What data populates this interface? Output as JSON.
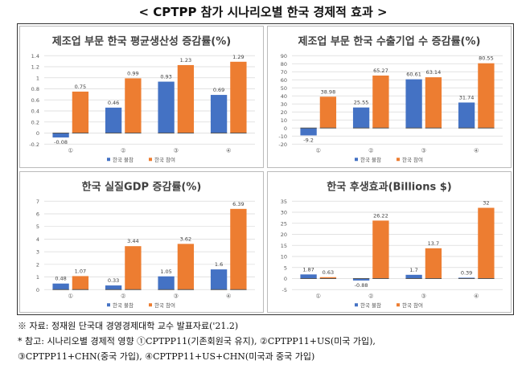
{
  "page_title": "< CPTPP 참가 시나리오별 한국 경제적 효과 >",
  "colors": {
    "not_joining": "#4472C4",
    "joining": "#ED7D31"
  },
  "chart_data": [
    {
      "type": "bar",
      "title": "제조업 부문 한국 평균생산성 증감률(%)",
      "categories": [
        "①",
        "②",
        "③",
        "④"
      ],
      "series": [
        {
          "name": "한국 불참",
          "values": [
            -0.08,
            0.46,
            0.93,
            0.69
          ]
        },
        {
          "name": "한국 참여",
          "values": [
            0.75,
            0.99,
            1.23,
            1.29
          ]
        }
      ],
      "ylim": [
        -0.2,
        1.4
      ],
      "yticks": [
        "-0.2",
        "0",
        "0.2",
        "0.4",
        "0.6",
        "0.8",
        "1",
        "1.2",
        "1.4"
      ],
      "grid": true,
      "legend": "bottom"
    },
    {
      "type": "bar",
      "title": "제조업 부문 한국 수출기업 수 증감률(%)",
      "categories": [
        "①",
        "②",
        "③",
        "④"
      ],
      "series": [
        {
          "name": "한국 불참",
          "values": [
            -9.2,
            25.55,
            60.61,
            31.74
          ]
        },
        {
          "name": "한국 참여",
          "values": [
            38.98,
            65.27,
            63.14,
            80.55
          ]
        }
      ],
      "ylim": [
        -20,
        90
      ],
      "yticks": [
        "-20",
        "-10",
        "0",
        "10",
        "20",
        "30",
        "40",
        "50",
        "60",
        "70",
        "80",
        "90"
      ],
      "grid": true,
      "legend": "bottom"
    },
    {
      "type": "bar",
      "title": "한국 실질GDP 증감률(%)",
      "categories": [
        "①",
        "②",
        "③",
        "④"
      ],
      "series": [
        {
          "name": "한국 불참",
          "values": [
            0.48,
            0.33,
            1.05,
            1.6
          ]
        },
        {
          "name": "한국 참여",
          "values": [
            1.07,
            3.44,
            3.62,
            6.39
          ]
        }
      ],
      "ylim": [
        0,
        7
      ],
      "yticks": [
        "0",
        "1",
        "2",
        "3",
        "4",
        "5",
        "6",
        "7"
      ],
      "grid": true,
      "legend": "bottom"
    },
    {
      "type": "bar",
      "title": "한국 후생효과(Billions $)",
      "categories": [
        "①",
        "②",
        "③",
        "④"
      ],
      "series": [
        {
          "name": "한국 불참",
          "values": [
            1.87,
            -0.88,
            1.7,
            0.39
          ]
        },
        {
          "name": "한국 참여",
          "values": [
            0.63,
            26.22,
            13.7,
            32
          ]
        }
      ],
      "ylim": [
        -5,
        35
      ],
      "yticks": [
        "-5",
        "0",
        "5",
        "10",
        "15",
        "20",
        "25",
        "30",
        "35"
      ],
      "grid": true,
      "legend": "bottom"
    }
  ],
  "notes": {
    "source": "※ 자료: 정재원 단국대 경영경제대학 교수 발표자료('21.2)",
    "ref_line1": "* 참고: 시나리오별 경제적 영향 ①CPTPP11(기존회원국 유지), ②CPTPP11+US(미국 가입),",
    "ref_line2": "③CPTPP11+CHN(중국 가입), ④CPTPP11+US+CHN(미국과 중국 가입)"
  }
}
